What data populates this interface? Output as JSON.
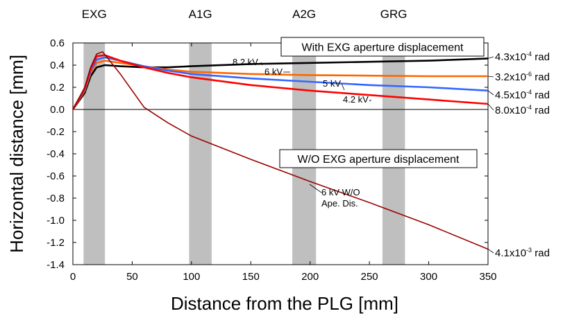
{
  "chart_data": {
    "type": "line",
    "xlabel": "Distance from the PLG [mm]",
    "ylabel": "Horizontal distance [mm]",
    "xlim": [
      0,
      350
    ],
    "ylim": [
      -1.4,
      0.6
    ],
    "x_ticks": [
      "0",
      "50",
      "100",
      "150",
      "200",
      "250",
      "300",
      "350"
    ],
    "y_ticks": [
      "0.6",
      "0.4",
      "0.2",
      "0.0",
      "-0.2",
      "-0.4",
      "-0.6",
      "-0.8",
      "-1.0",
      "-1.2",
      "-1.4"
    ],
    "electrodes": [
      {
        "label": "EXG",
        "x_start": 9,
        "x_end": 27
      },
      {
        "label": "A1G",
        "x_start": 98,
        "x_end": 117
      },
      {
        "label": "A2G",
        "x_start": 185,
        "x_end": 205
      },
      {
        "label": "GRG",
        "x_start": 261,
        "x_end": 280
      }
    ],
    "boxes": [
      "With EXG aperture displacement",
      "W/O EXG aperture displacement"
    ],
    "series": [
      {
        "name": "8.2 kV",
        "color": "#000000",
        "end_label": "4.3x10-4 rad",
        "x": [
          0,
          10,
          15,
          20,
          27,
          40,
          60,
          80,
          100,
          150,
          200,
          250,
          300,
          350
        ],
        "y": [
          0.0,
          0.15,
          0.3,
          0.38,
          0.4,
          0.39,
          0.38,
          0.38,
          0.39,
          0.41,
          0.42,
          0.43,
          0.44,
          0.46
        ]
      },
      {
        "name": "6 kV",
        "color": "#ff6600",
        "end_label": "3.2x10-6 rad",
        "x": [
          0,
          10,
          15,
          20,
          27,
          40,
          60,
          80,
          100,
          150,
          200,
          250,
          300,
          350
        ],
        "y": [
          0.0,
          0.17,
          0.33,
          0.42,
          0.44,
          0.42,
          0.39,
          0.36,
          0.34,
          0.32,
          0.31,
          0.305,
          0.3,
          0.3
        ]
      },
      {
        "name": "5 kV",
        "color": "#3366ff",
        "end_label": "4.5x10-4 rad",
        "x": [
          0,
          10,
          15,
          20,
          27,
          40,
          60,
          80,
          100,
          150,
          200,
          250,
          300,
          350
        ],
        "y": [
          0.0,
          0.18,
          0.35,
          0.45,
          0.47,
          0.44,
          0.39,
          0.35,
          0.32,
          0.28,
          0.25,
          0.22,
          0.2,
          0.17
        ]
      },
      {
        "name": "4.2 kV",
        "color": "#ff0000",
        "end_label": "8.0x10-4 rad",
        "x": [
          0,
          10,
          15,
          20,
          27,
          40,
          60,
          80,
          100,
          150,
          200,
          250,
          300,
          350
        ],
        "y": [
          0.0,
          0.19,
          0.37,
          0.48,
          0.49,
          0.44,
          0.38,
          0.33,
          0.29,
          0.22,
          0.17,
          0.13,
          0.09,
          0.05
        ]
      },
      {
        "name": "6 kV W/O\nApe. Dis.",
        "color": "#990000",
        "end_label": "4.1x10-3 rad",
        "x": [
          0,
          10,
          15,
          20,
          25,
          40,
          60,
          80,
          100,
          150,
          200,
          250,
          300,
          350
        ],
        "y": [
          0.0,
          0.2,
          0.38,
          0.5,
          0.52,
          0.32,
          0.02,
          -0.12,
          -0.24,
          -0.45,
          -0.65,
          -0.84,
          -1.04,
          -1.26
        ]
      }
    ]
  }
}
